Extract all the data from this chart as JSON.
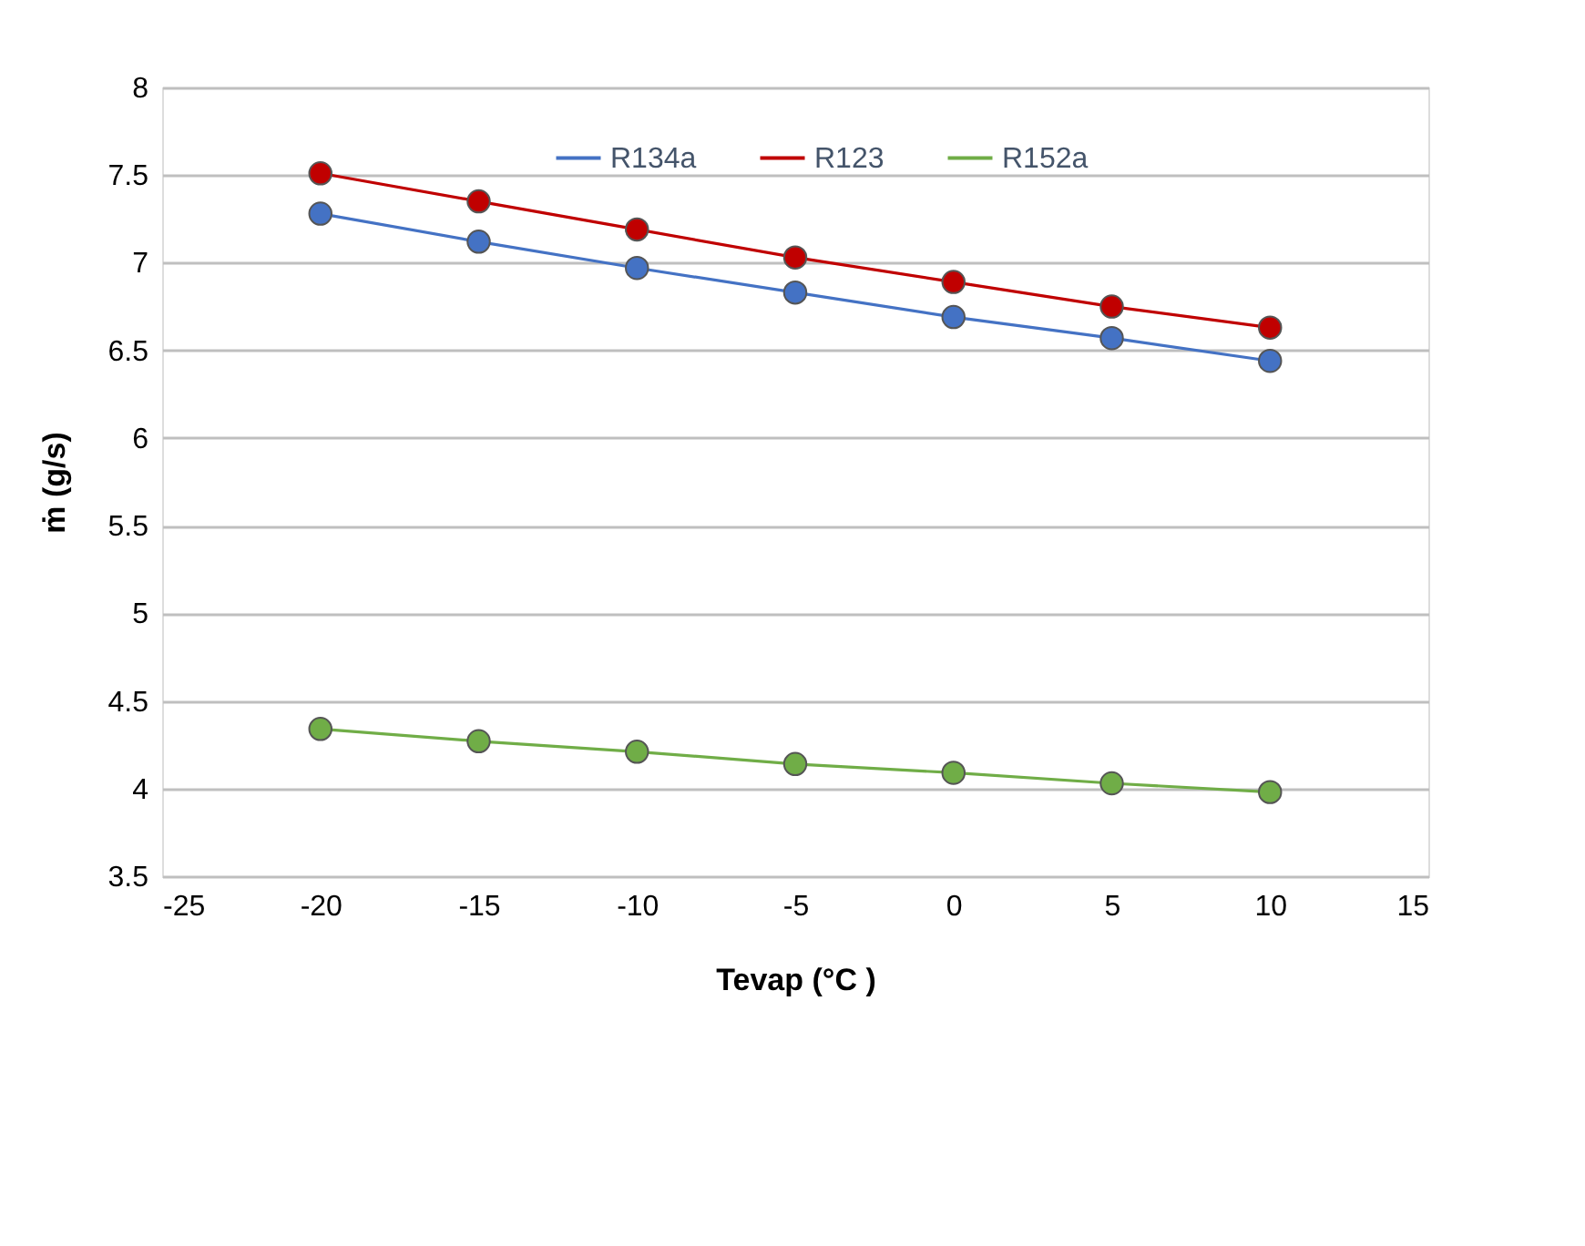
{
  "chart_data": {
    "type": "line",
    "xlabel": "Tevap (°C )",
    "ylabel": "ṁ (g/s)",
    "x": [
      -20,
      -15,
      -10,
      -5,
      0,
      5,
      10
    ],
    "series": [
      {
        "name": "R134a",
        "color": "#4472c4",
        "values": [
          7.28,
          7.12,
          6.97,
          6.83,
          6.69,
          6.57,
          6.44
        ]
      },
      {
        "name": "R123",
        "color": "#c00000",
        "values": [
          7.51,
          7.35,
          7.19,
          7.03,
          6.89,
          6.75,
          6.63
        ]
      },
      {
        "name": "R152a",
        "color": "#70ad47",
        "values": [
          4.34,
          4.27,
          4.21,
          4.14,
          4.09,
          4.03,
          3.98
        ]
      }
    ],
    "xlim": [
      -25,
      15
    ],
    "xticks": [
      -25,
      -20,
      -15,
      -10,
      -5,
      0,
      5,
      10,
      15
    ],
    "ylim": [
      3.5,
      8
    ],
    "yticks": [
      3.5,
      4,
      4.5,
      5,
      5.5,
      6,
      6.5,
      7,
      7.5,
      8
    ],
    "grid": "y",
    "legend": "top",
    "marker": "circle",
    "line_style": "solid"
  }
}
